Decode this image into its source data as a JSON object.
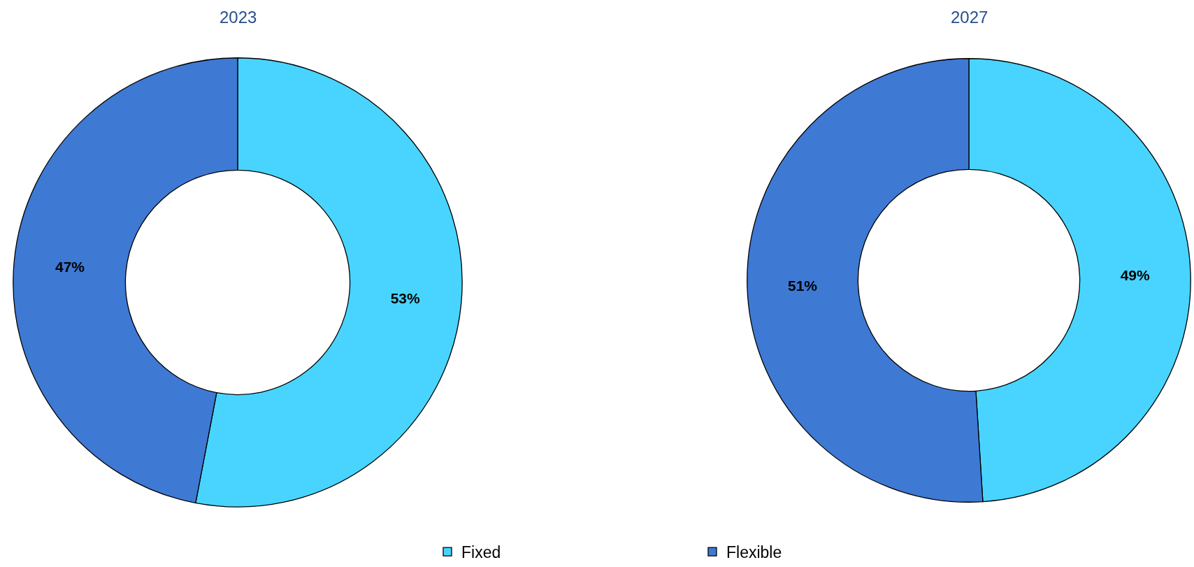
{
  "chart_data": {
    "type": "donut",
    "categories": [
      "Fixed",
      "Flexible"
    ],
    "colors": [
      "#48d4ff",
      "#3e79d4"
    ],
    "series": [
      {
        "name": "2023",
        "values": [
          53,
          47
        ],
        "value_labels": [
          "53%",
          "47%"
        ]
      },
      {
        "name": "2027",
        "values": [
          49,
          51
        ],
        "value_labels": [
          "49%",
          "51%"
        ]
      }
    ],
    "legend": "bottom"
  }
}
